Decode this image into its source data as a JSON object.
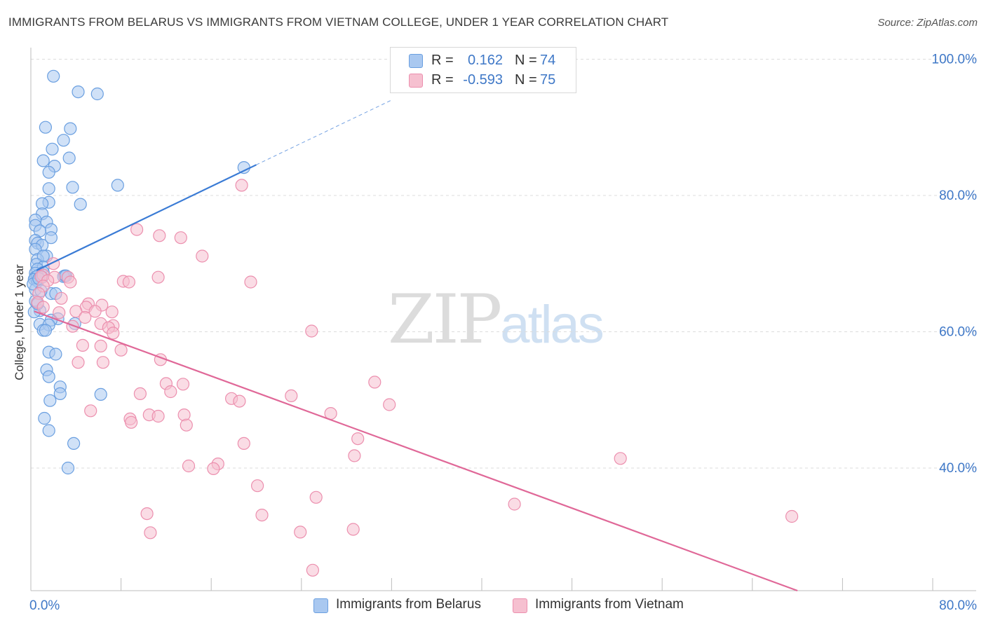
{
  "title": "IMMIGRANTS FROM BELARUS VS IMMIGRANTS FROM VIETNAM COLLEGE, UNDER 1 YEAR CORRELATION CHART",
  "source": "Source: ZipAtlas.com",
  "watermark": {
    "zip": "ZIP",
    "atlas": "atlas"
  },
  "legend_top": {
    "rows": [
      {
        "r_label": "R =",
        "r_value": "0.162",
        "n_label": "N =",
        "n_value": "74",
        "color": "#a9c8f0",
        "stroke": "#6a9fe0"
      },
      {
        "r_label": "R =",
        "r_value": "-0.593",
        "n_label": "N =",
        "n_value": "75",
        "color": "#f6c0d0",
        "stroke": "#ec8fae"
      }
    ]
  },
  "chart_data": {
    "type": "scatter",
    "title": "IMMIGRANTS FROM BELARUS VS IMMIGRANTS FROM VIETNAM COLLEGE, UNDER 1 YEAR CORRELATION CHART",
    "xlabel": "",
    "ylabel": "College, Under 1 year",
    "xlim": [
      0,
      80
    ],
    "ylim": [
      22,
      102
    ],
    "x_tick_labels": [
      {
        "value": 0,
        "label": "0.0%"
      },
      {
        "value": 80,
        "label": "80.0%"
      }
    ],
    "y_tick_labels": [
      {
        "value": 100,
        "label": "100.0%"
      },
      {
        "value": 80,
        "label": "80.0%"
      },
      {
        "value": 60,
        "label": "60.0%"
      },
      {
        "value": 40,
        "label": "40.0%"
      }
    ],
    "x_minor_ticks": [
      0,
      8,
      16,
      24,
      32,
      40,
      48,
      56,
      64,
      72,
      80
    ],
    "grid": true,
    "legend": "bottom",
    "series": [
      {
        "name": "Immigrants from Belarus",
        "color": "#a9c8f0",
        "stroke": "#6a9fe0",
        "line_color": "#3a7bd5",
        "trend": {
          "x0": 0.5,
          "y0": 69.0,
          "x1": 20.0,
          "y1": 84.5,
          "dash_to_x": 32.0,
          "dash_to_y": 94.0
        },
        "points": [
          [
            2.0,
            97.5
          ],
          [
            4.2,
            95.2
          ],
          [
            5.9,
            94.9
          ],
          [
            1.3,
            90.0
          ],
          [
            3.5,
            89.8
          ],
          [
            2.9,
            88.1
          ],
          [
            1.9,
            86.8
          ],
          [
            3.4,
            85.5
          ],
          [
            1.1,
            85.1
          ],
          [
            2.1,
            84.3
          ],
          [
            1.6,
            83.4
          ],
          [
            18.9,
            84.1
          ],
          [
            7.7,
            81.5
          ],
          [
            1.6,
            81.0
          ],
          [
            3.7,
            81.2
          ],
          [
            1.6,
            79.0
          ],
          [
            4.4,
            78.7
          ],
          [
            1.0,
            78.8
          ],
          [
            1.0,
            77.3
          ],
          [
            0.4,
            76.4
          ],
          [
            1.4,
            76.1
          ],
          [
            0.4,
            75.6
          ],
          [
            1.8,
            75.0
          ],
          [
            0.8,
            74.8
          ],
          [
            1.8,
            73.8
          ],
          [
            0.4,
            73.4
          ],
          [
            0.6,
            73.0
          ],
          [
            1.0,
            72.7
          ],
          [
            0.4,
            72.1
          ],
          [
            1.4,
            71.1
          ],
          [
            0.6,
            70.6
          ],
          [
            1.1,
            71.1
          ],
          [
            0.5,
            69.9
          ],
          [
            1.1,
            69.5
          ],
          [
            0.6,
            69.2
          ],
          [
            0.4,
            68.6
          ],
          [
            1.1,
            68.7
          ],
          [
            0.4,
            68.0
          ],
          [
            0.6,
            68.2
          ],
          [
            3.0,
            68.2
          ],
          [
            2.9,
            68.1
          ],
          [
            0.3,
            67.7
          ],
          [
            0.6,
            67.4
          ],
          [
            3.1,
            68.2
          ],
          [
            1.8,
            65.6
          ],
          [
            2.2,
            65.6
          ],
          [
            0.4,
            64.5
          ],
          [
            0.8,
            63.1
          ],
          [
            2.4,
            61.9
          ],
          [
            1.8,
            61.7
          ],
          [
            3.9,
            61.2
          ],
          [
            0.8,
            61.1
          ],
          [
            1.6,
            61.0
          ],
          [
            1.1,
            60.2
          ],
          [
            1.3,
            60.2
          ],
          [
            1.6,
            57.0
          ],
          [
            2.2,
            56.7
          ],
          [
            1.4,
            54.4
          ],
          [
            1.6,
            53.4
          ],
          [
            2.6,
            51.9
          ],
          [
            2.6,
            50.9
          ],
          [
            6.2,
            50.8
          ],
          [
            1.7,
            49.9
          ],
          [
            1.2,
            47.3
          ],
          [
            1.6,
            45.5
          ],
          [
            3.8,
            43.6
          ],
          [
            3.3,
            40.0
          ],
          [
            0.3,
            62.9
          ],
          [
            0.6,
            64.1
          ],
          [
            0.4,
            66.2
          ],
          [
            0.2,
            67.0
          ],
          [
            0.9,
            66.0
          ],
          [
            1.0,
            68.0
          ],
          [
            0.7,
            67.8
          ]
        ]
      },
      {
        "name": "Immigrants from Vietnam",
        "color": "#f6c0d0",
        "stroke": "#ec8fae",
        "line_color": "#e06898",
        "trend": {
          "x0": 0.3,
          "y0": 63.0,
          "x1": 68.0,
          "y1": 22.0
        },
        "points": [
          [
            18.7,
            81.5
          ],
          [
            9.4,
            75.0
          ],
          [
            11.4,
            74.1
          ],
          [
            13.3,
            73.8
          ],
          [
            15.2,
            71.1
          ],
          [
            2.0,
            70.0
          ],
          [
            1.1,
            68.3
          ],
          [
            2.1,
            68.0
          ],
          [
            0.9,
            68.1
          ],
          [
            1.5,
            67.5
          ],
          [
            3.3,
            68.0
          ],
          [
            11.3,
            68.0
          ],
          [
            8.2,
            67.4
          ],
          [
            8.7,
            67.3
          ],
          [
            19.5,
            67.3
          ],
          [
            3.5,
            67.3
          ],
          [
            1.1,
            66.7
          ],
          [
            0.7,
            65.6
          ],
          [
            2.7,
            64.9
          ],
          [
            0.6,
            64.3
          ],
          [
            5.1,
            64.1
          ],
          [
            4.9,
            63.6
          ],
          [
            6.3,
            63.9
          ],
          [
            1.1,
            63.6
          ],
          [
            5.7,
            63.0
          ],
          [
            4.0,
            63.0
          ],
          [
            2.5,
            62.8
          ],
          [
            7.2,
            62.9
          ],
          [
            4.8,
            62.1
          ],
          [
            6.2,
            61.2
          ],
          [
            7.3,
            60.9
          ],
          [
            6.9,
            60.6
          ],
          [
            3.7,
            60.8
          ],
          [
            24.9,
            60.1
          ],
          [
            7.3,
            59.8
          ],
          [
            4.6,
            58.0
          ],
          [
            6.2,
            57.9
          ],
          [
            8.0,
            57.3
          ],
          [
            11.5,
            55.9
          ],
          [
            4.2,
            55.5
          ],
          [
            6.4,
            55.5
          ],
          [
            30.5,
            52.6
          ],
          [
            12.0,
            52.4
          ],
          [
            13.5,
            52.3
          ],
          [
            12.4,
            51.2
          ],
          [
            9.7,
            50.9
          ],
          [
            23.1,
            50.6
          ],
          [
            17.8,
            50.2
          ],
          [
            18.5,
            49.8
          ],
          [
            31.8,
            49.3
          ],
          [
            5.3,
            48.4
          ],
          [
            26.6,
            48.0
          ],
          [
            13.6,
            47.8
          ],
          [
            10.5,
            47.8
          ],
          [
            11.3,
            47.6
          ],
          [
            8.8,
            47.2
          ],
          [
            8.9,
            46.7
          ],
          [
            13.8,
            46.3
          ],
          [
            29.0,
            44.3
          ],
          [
            18.9,
            43.6
          ],
          [
            28.7,
            41.8
          ],
          [
            52.3,
            41.4
          ],
          [
            16.6,
            40.6
          ],
          [
            14.0,
            40.3
          ],
          [
            16.2,
            39.9
          ],
          [
            20.1,
            37.4
          ],
          [
            25.3,
            35.7
          ],
          [
            42.9,
            34.7
          ],
          [
            10.3,
            33.3
          ],
          [
            20.5,
            33.1
          ],
          [
            67.5,
            32.9
          ],
          [
            28.6,
            31.0
          ],
          [
            23.9,
            30.6
          ],
          [
            10.6,
            30.5
          ],
          [
            25.0,
            25.0
          ]
        ]
      }
    ]
  }
}
